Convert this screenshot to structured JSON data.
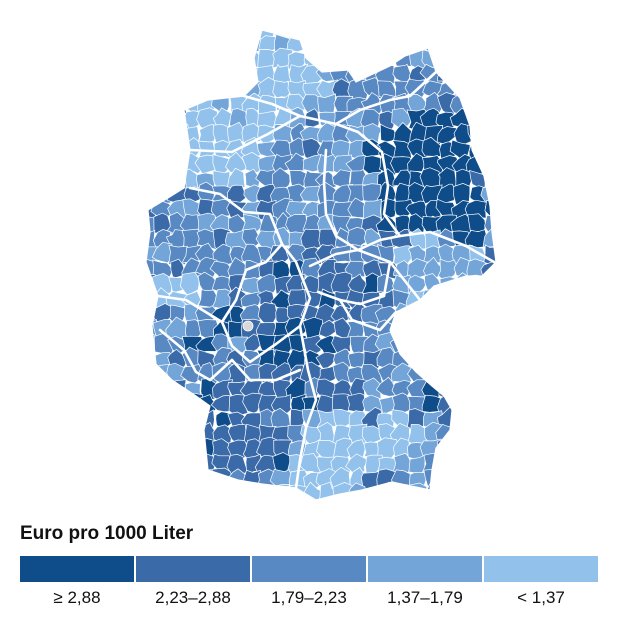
{
  "legend": {
    "title": "Euro pro 1000 Liter",
    "classes": [
      {
        "label": "≥ 2,88",
        "color": "#0f4c8a"
      },
      {
        "label": "2,23–2,88",
        "color": "#3b6aa8"
      },
      {
        "label": "1,79–2,23",
        "color": "#5889c3"
      },
      {
        "label": "1,37–1,79",
        "color": "#74a5d9"
      },
      {
        "label": "< 1,37",
        "color": "#92c2ec"
      }
    ]
  },
  "map": {
    "country": "Germany",
    "unit_level": "districts",
    "border_color": "#ffffff",
    "missing_color": "#d9d9d9"
  }
}
